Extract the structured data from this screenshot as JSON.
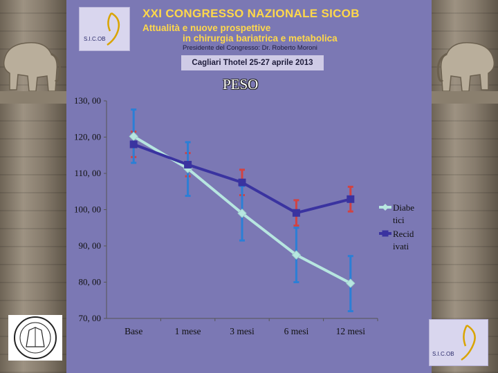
{
  "banner": {
    "title": "XXI CONGRESSO NAZIONALE SICOB",
    "line1": "Attualità e nuove prospettive",
    "line2": "in chirurgia bariatrica e metabolica",
    "president": "Presidente del Congresso: Dr. Roberto Moroni",
    "venue": "Cagliari Thotel 25-27 aprile 2013",
    "logo_text": "S.I.C.OB"
  },
  "corner_logo_text": "S.I.C.OB",
  "colors": {
    "background": "#7b78b4",
    "diabetici": "#b7e6e0",
    "recidivati": "#3a33a0",
    "error_blue": "#2b7fd6",
    "error_red": "#d14343",
    "title_text": "#ffd84a"
  },
  "chart_data": {
    "type": "line",
    "title": "PESO",
    "categories": [
      "Base",
      "1 mese",
      "3 mesi",
      "6 mesi",
      "12 mesi"
    ],
    "y_tick_labels": [
      "130, 00",
      "120, 00",
      "110, 00",
      "100, 00",
      "90, 00",
      "80, 00",
      "70, 00"
    ],
    "ylim": [
      70,
      130
    ],
    "legend_position": "right",
    "series": [
      {
        "name": "Diabetici",
        "legend_lines": [
          "Diabe",
          "tici"
        ],
        "values": [
          120.2,
          111.3,
          99.0,
          87.5,
          79.7
        ],
        "error_low": [
          112.9,
          103.8,
          91.5,
          80.0,
          72.0
        ],
        "error_high": [
          127.6,
          118.6,
          106.5,
          95.0,
          87.2
        ]
      },
      {
        "name": "Recidivati",
        "legend_lines": [
          "Recid",
          "ivati"
        ],
        "values": [
          118.0,
          112.4,
          107.5,
          99.1,
          102.9
        ],
        "error_low": [
          114.5,
          109.2,
          104.0,
          95.6,
          99.5
        ],
        "error_high": [
          121.5,
          115.6,
          111.0,
          102.6,
          106.3
        ]
      }
    ]
  }
}
